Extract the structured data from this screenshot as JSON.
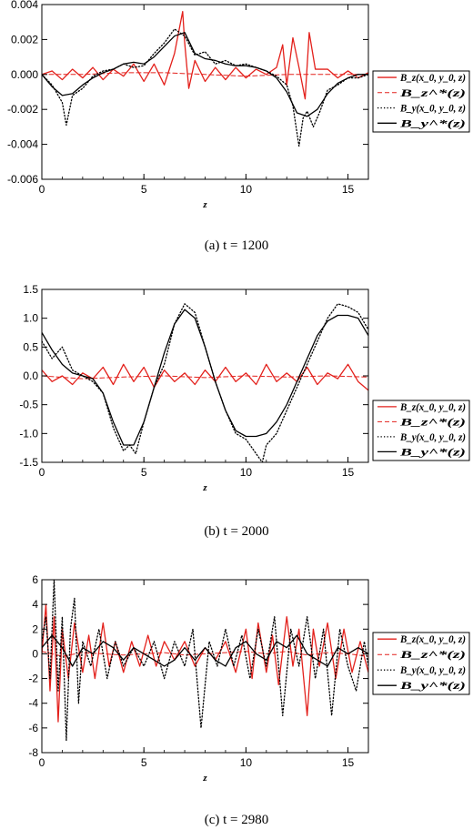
{
  "colors": {
    "bz": "#e3211c",
    "by": "#000000",
    "axis": "#000000"
  },
  "legend_labels": [
    "B_z(x_0, y_0, z)",
    "B_z^*(z)",
    "B_y(x_0, y_0, z)",
    "B_y^*(z)"
  ],
  "chart_data": [
    {
      "type": "line",
      "caption": "(a) t = 1200",
      "xlabel": "z",
      "xlim": [
        0,
        16
      ],
      "ylim": [
        -0.006,
        0.004
      ],
      "xticks": [
        0,
        5,
        10,
        15
      ],
      "xtick_labels": [
        "0",
        "5",
        "10",
        "15"
      ],
      "yticks": [
        -0.006,
        -0.004,
        -0.002,
        0.0,
        0.002,
        0.004
      ],
      "ytick_labels": [
        "-0.006",
        "-0.004",
        "-0.002",
        "0.000",
        "0.002",
        "0.004"
      ],
      "legend_placement": "right",
      "series": [
        {
          "name": "B_z(x_0, y_0, z)",
          "style": "solid",
          "color": "#e3211c",
          "x": [
            0,
            0.5,
            1,
            1.5,
            2,
            2.5,
            3,
            3.5,
            4,
            4.5,
            5,
            5.5,
            6,
            6.5,
            6.9,
            7,
            7.2,
            7.5,
            8,
            8.5,
            9,
            9.5,
            10,
            10.5,
            11,
            11.5,
            11.8,
            12,
            12.3,
            12.6,
            12.9,
            13.1,
            13.4,
            13.7,
            14,
            14.5,
            15,
            15.5,
            16
          ],
          "y": [
            0.0,
            0.0002,
            -0.0003,
            0.0003,
            -0.0002,
            0.0004,
            -0.0003,
            0.0003,
            -0.0001,
            0.0006,
            -0.0004,
            0.0006,
            -0.0006,
            0.0012,
            0.0036,
            0.0018,
            -0.0008,
            0.0008,
            -0.0004,
            0.0004,
            -0.0003,
            0.0004,
            -0.0002,
            0.0003,
            0.0,
            0.0004,
            0.0017,
            -0.0006,
            0.0021,
            0.0004,
            -0.0014,
            0.0024,
            0.0003,
            0.0003,
            0.0003,
            -0.0002,
            0.0002,
            -0.0002,
            0.0001
          ]
        },
        {
          "name": "B_z^*(z)",
          "style": "dashed",
          "color": "#e3211c",
          "x": [
            0,
            2,
            4,
            6,
            8,
            10,
            12,
            14,
            16
          ],
          "y": [
            0.0,
            0.0,
            0.0001,
            0.0001,
            0.0,
            -0.0001,
            0.0,
            0.0,
            0.0
          ]
        },
        {
          "name": "B_y(x_0, y_0, z)",
          "style": "dotted",
          "color": "#000000",
          "x": [
            0,
            0.5,
            1,
            1.2,
            1.5,
            2,
            2.5,
            3,
            3.5,
            4,
            4.5,
            5,
            5.5,
            6,
            6.5,
            7,
            7.5,
            8,
            8.5,
            9,
            9.5,
            10,
            10.5,
            11,
            11.5,
            12,
            12.3,
            12.6,
            12.8,
            13,
            13.3,
            13.6,
            14,
            14.5,
            15,
            15.5,
            16
          ],
          "y": [
            0.0,
            -0.0006,
            -0.0016,
            -0.0029,
            -0.0012,
            -0.0008,
            -0.0001,
            0.0002,
            0.0003,
            0.0006,
            0.0004,
            0.0005,
            0.0012,
            0.0018,
            0.0026,
            0.0022,
            0.0011,
            0.0013,
            0.0006,
            0.0008,
            0.0005,
            0.0006,
            0.0004,
            0.0002,
            -0.0001,
            -0.0006,
            -0.0018,
            -0.0041,
            -0.0025,
            -0.0021,
            -0.003,
            -0.0022,
            -0.0009,
            -0.0006,
            -0.0002,
            -0.0002,
            0.0
          ]
        },
        {
          "name": "B_y^*(z)",
          "style": "solid",
          "color": "#000000",
          "x": [
            0,
            0.5,
            1,
            1.5,
            2,
            2.5,
            3,
            3.5,
            4,
            4.5,
            5,
            5.5,
            6,
            6.5,
            7,
            7.5,
            8,
            8.5,
            9,
            9.5,
            10,
            10.5,
            11,
            11.5,
            12,
            12.5,
            13,
            13.5,
            14,
            14.5,
            15,
            15.5,
            16
          ],
          "y": [
            0.0,
            -0.0007,
            -0.0012,
            -0.0011,
            -0.0006,
            -0.0002,
            0.0001,
            0.0003,
            0.0006,
            0.0007,
            0.0006,
            0.001,
            0.0016,
            0.0022,
            0.0024,
            0.0012,
            0.0009,
            0.0008,
            0.0006,
            0.0005,
            0.0005,
            0.0004,
            0.0002,
            -0.0002,
            -0.001,
            -0.0022,
            -0.0024,
            -0.002,
            -0.0011,
            -0.0005,
            -0.0002,
            0.0,
            0.0
          ]
        }
      ]
    },
    {
      "type": "line",
      "caption": "(b) t = 2000",
      "xlabel": "z",
      "xlim": [
        0,
        16
      ],
      "ylim": [
        -1.5,
        1.5
      ],
      "xticks": [
        0,
        5,
        10,
        15
      ],
      "xtick_labels": [
        "0",
        "5",
        "10",
        "15"
      ],
      "yticks": [
        -1.5,
        -1.0,
        -0.5,
        0.0,
        0.5,
        1.0,
        1.5
      ],
      "ytick_labels": [
        "-1.5",
        "-1.0",
        "-0.5",
        "0.0",
        "0.5",
        "1.0",
        "1.5"
      ],
      "legend_placement": "right",
      "series": [
        {
          "name": "B_z(x_0, y_0, z)",
          "style": "solid",
          "color": "#e3211c",
          "x": [
            0,
            0.5,
            1,
            1.5,
            2,
            2.5,
            3,
            3.5,
            4,
            4.5,
            5,
            5.5,
            6,
            6.5,
            7,
            7.5,
            8,
            8.5,
            9,
            9.5,
            10,
            10.5,
            11,
            11.5,
            12,
            12.5,
            13,
            13.5,
            14,
            14.5,
            15,
            15.5,
            16
          ],
          "y": [
            0.1,
            -0.1,
            0.0,
            -0.15,
            0.05,
            -0.05,
            0.15,
            -0.15,
            0.2,
            -0.1,
            0.15,
            -0.2,
            0.1,
            -0.1,
            0.05,
            -0.15,
            0.1,
            -0.1,
            0.15,
            -0.1,
            0.05,
            -0.15,
            0.2,
            -0.1,
            0.05,
            -0.1,
            0.15,
            -0.15,
            0.05,
            -0.05,
            0.2,
            -0.1,
            -0.25
          ]
        },
        {
          "name": "B_z^*(z)",
          "style": "dashed",
          "color": "#e3211c",
          "x": [
            0,
            2,
            4,
            6,
            8,
            10,
            12,
            14,
            16
          ],
          "y": [
            0.0,
            -0.05,
            -0.02,
            0.0,
            -0.03,
            0.0,
            -0.02,
            0.0,
            -0.02
          ]
        },
        {
          "name": "B_y(x_0, y_0, z)",
          "style": "dotted",
          "color": "#000000",
          "x": [
            0,
            0.5,
            1,
            1.5,
            2,
            2.5,
            3,
            3.5,
            4,
            4.3,
            4.6,
            5,
            5.5,
            6,
            6.5,
            7,
            7.5,
            8,
            8.5,
            9,
            9.5,
            10,
            10.5,
            10.8,
            11,
            11.5,
            12,
            12.5,
            13,
            13.5,
            14,
            14.5,
            15,
            15.5,
            16
          ],
          "y": [
            0.6,
            0.3,
            0.5,
            0.1,
            0.0,
            -0.1,
            -0.3,
            -0.9,
            -1.3,
            -1.2,
            -1.35,
            -0.8,
            -0.2,
            0.2,
            0.9,
            1.25,
            1.1,
            0.5,
            -0.1,
            -0.6,
            -1.0,
            -1.1,
            -1.35,
            -1.5,
            -1.2,
            -1.0,
            -0.6,
            -0.2,
            0.2,
            0.6,
            1.0,
            1.25,
            1.2,
            1.1,
            0.8
          ]
        },
        {
          "name": "B_y^*(z)",
          "style": "solid",
          "color": "#000000",
          "x": [
            0,
            0.5,
            1,
            1.5,
            2,
            2.5,
            3,
            3.5,
            4,
            4.5,
            5,
            5.5,
            6,
            6.5,
            7,
            7.5,
            8,
            8.5,
            9,
            9.5,
            10,
            10.5,
            11,
            11.5,
            12,
            12.5,
            13,
            13.5,
            14,
            14.5,
            15,
            15.5,
            16
          ],
          "y": [
            0.75,
            0.45,
            0.2,
            0.05,
            0.0,
            -0.05,
            -0.3,
            -0.8,
            -1.2,
            -1.2,
            -0.8,
            -0.2,
            0.4,
            0.9,
            1.15,
            1.0,
            0.5,
            -0.1,
            -0.6,
            -0.95,
            -1.05,
            -1.05,
            -1.0,
            -0.8,
            -0.5,
            -0.1,
            0.3,
            0.7,
            0.95,
            1.05,
            1.05,
            1.0,
            0.7
          ]
        }
      ]
    },
    {
      "type": "line",
      "caption": "(c) t = 2980",
      "xlabel": "z",
      "xlim": [
        0,
        16
      ],
      "ylim": [
        -8,
        6
      ],
      "xticks": [
        0,
        5,
        10,
        15
      ],
      "xtick_labels": [
        "0",
        "5",
        "10",
        "15"
      ],
      "yticks": [
        -8,
        -6,
        -4,
        -2,
        0,
        2,
        4,
        6
      ],
      "ytick_labels": [
        "-8",
        "-6",
        "-4",
        "-2",
        "0",
        "2",
        "4",
        "6"
      ],
      "legend_placement": "right",
      "series": [
        {
          "name": "B_z(x_0, y_0, z)",
          "style": "solid",
          "color": "#e3211c",
          "x": [
            0,
            0.2,
            0.4,
            0.6,
            0.8,
            1,
            1.3,
            1.6,
            2,
            2.3,
            2.6,
            3,
            3.3,
            3.6,
            4,
            4.4,
            4.8,
            5.2,
            5.6,
            6,
            6.5,
            7,
            7.5,
            8,
            8.5,
            9,
            9.5,
            10,
            10.3,
            10.6,
            11,
            11.3,
            11.6,
            12,
            12.3,
            12.6,
            13,
            13.3,
            13.6,
            14,
            14.4,
            14.8,
            15.2,
            15.6,
            16
          ],
          "y": [
            0,
            4,
            -3,
            3,
            -5.5,
            2,
            -2,
            2.5,
            -1.5,
            1.5,
            -2,
            2.5,
            -1,
            1,
            -1.5,
            1,
            -1,
            1.5,
            -1,
            1,
            -0.5,
            1,
            -1,
            0.5,
            -0.5,
            1,
            -1.5,
            2,
            -2,
            2.5,
            -1.5,
            1.5,
            -2.5,
            3,
            -1,
            2,
            -5,
            2,
            -1,
            2.5,
            -2,
            2,
            -1.5,
            1,
            -1.5
          ]
        },
        {
          "name": "B_z^*(z)",
          "style": "dashed",
          "color": "#e3211c",
          "x": [
            0,
            1,
            2,
            3,
            4,
            5,
            6,
            7,
            8,
            9,
            10,
            11,
            12,
            13,
            14,
            15,
            16
          ],
          "y": [
            0.2,
            -0.2,
            0.1,
            0.0,
            -0.1,
            0.0,
            0.1,
            -0.1,
            0.0,
            0.1,
            0.2,
            0.0,
            0.2,
            -0.1,
            0.1,
            0.0,
            -0.2
          ]
        },
        {
          "name": "B_y(x_0, y_0, z)",
          "style": "dotted",
          "color": "#000000",
          "x": [
            0,
            0.2,
            0.4,
            0.6,
            0.8,
            1,
            1.2,
            1.4,
            1.6,
            1.8,
            2,
            2.4,
            2.8,
            3.2,
            3.6,
            4,
            4.5,
            5,
            5.5,
            6,
            6.5,
            7,
            7.4,
            7.8,
            8.2,
            8.6,
            9,
            9.4,
            9.8,
            10.2,
            10.6,
            11,
            11.4,
            11.8,
            12.2,
            12.6,
            13,
            13.4,
            13.8,
            14.2,
            14.6,
            15,
            15.4,
            15.8,
            16
          ],
          "y": [
            1,
            3,
            -2,
            6,
            -3,
            3,
            -7,
            2,
            4.5,
            -4,
            1,
            -1,
            2,
            -2,
            1,
            -1,
            0.5,
            -1,
            1,
            -2,
            1,
            -1,
            2,
            -6,
            1,
            -1,
            2,
            -1,
            1.5,
            -2,
            2,
            -1,
            3,
            -5,
            2,
            -1,
            3,
            -2,
            2,
            -5,
            2,
            -1,
            -3,
            1,
            -1
          ]
        },
        {
          "name": "B_y^*(z)",
          "style": "solid",
          "color": "#000000",
          "x": [
            0,
            0.5,
            1,
            1.5,
            2,
            2.5,
            3,
            3.5,
            4,
            4.5,
            5,
            5.5,
            6,
            6.5,
            7,
            7.5,
            8,
            8.5,
            9,
            9.5,
            10,
            10.5,
            11,
            11.5,
            12,
            12.5,
            13,
            13.5,
            14,
            14.5,
            15,
            15.5,
            16
          ],
          "y": [
            0.5,
            1.5,
            0.5,
            -1,
            0.5,
            0.0,
            1,
            0.5,
            -0.5,
            0.5,
            0.0,
            -0.5,
            -1,
            -0.5,
            0.5,
            -0.5,
            0.5,
            -0.5,
            -1,
            0.5,
            1,
            0.0,
            -0.5,
            1,
            0.5,
            1.5,
            0.0,
            -0.5,
            -1,
            0.5,
            0.0,
            0.5,
            0.0
          ]
        }
      ]
    }
  ]
}
